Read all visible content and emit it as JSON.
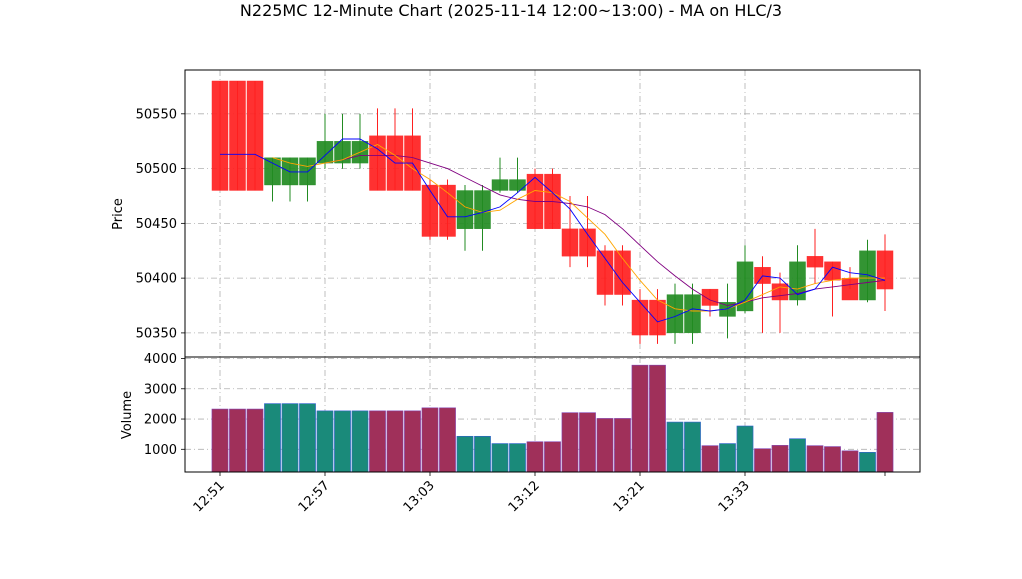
{
  "chart_data": {
    "type": "candlestick-volume",
    "title": "N225MC 12-Minute Chart (2025-11-14 12:00~13:00) - MA on HLC/3",
    "price_panel": {
      "ylabel": "Price",
      "ylim": [
        50328,
        50590
      ],
      "yticks": [
        50350,
        50400,
        50450,
        50500,
        50550
      ],
      "grid": true
    },
    "volume_panel": {
      "ylabel": "Volume",
      "ylim": [
        250,
        4050
      ],
      "yticks": [
        1000,
        2000,
        3000,
        4000
      ],
      "grid": true
    },
    "x_axis": {
      "tick_labels": [
        "12:51",
        "12:57",
        "13:03",
        "13:12",
        "13:21",
        "13:33"
      ],
      "tick_index": [
        0,
        6,
        12,
        18,
        24,
        30
      ]
    },
    "up_color": "#228b22",
    "down_color": "#ff2020",
    "ma_fast_color": "#0000ff",
    "ma_mid_color": "#ffa500",
    "ma_slow_color": "#800080",
    "bars": [
      {
        "o": 50580,
        "h": 50580,
        "l": 50480,
        "c": 50480,
        "v": 2330
      },
      {
        "o": 50580,
        "h": 50580,
        "l": 50480,
        "c": 50480,
        "v": 2330
      },
      {
        "o": 50580,
        "h": 50580,
        "l": 50480,
        "c": 50480,
        "v": 2330
      },
      {
        "o": 50485,
        "h": 50510,
        "l": 50470,
        "c": 50510,
        "v": 2510
      },
      {
        "o": 50485,
        "h": 50510,
        "l": 50470,
        "c": 50510,
        "v": 2510
      },
      {
        "o": 50485,
        "h": 50510,
        "l": 50470,
        "c": 50510,
        "v": 2510
      },
      {
        "o": 50505,
        "h": 50550,
        "l": 50500,
        "c": 50525,
        "v": 2270
      },
      {
        "o": 50505,
        "h": 50550,
        "l": 50500,
        "c": 50525,
        "v": 2270
      },
      {
        "o": 50505,
        "h": 50550,
        "l": 50500,
        "c": 50525,
        "v": 2270
      },
      {
        "o": 50530,
        "h": 50555,
        "l": 50480,
        "c": 50480,
        "v": 2270
      },
      {
        "o": 50530,
        "h": 50555,
        "l": 50480,
        "c": 50480,
        "v": 2270
      },
      {
        "o": 50530,
        "h": 50555,
        "l": 50480,
        "c": 50480,
        "v": 2270
      },
      {
        "o": 50485,
        "h": 50490,
        "l": 50435,
        "c": 50438,
        "v": 2370
      },
      {
        "o": 50485,
        "h": 50490,
        "l": 50435,
        "c": 50438,
        "v": 2370
      },
      {
        "o": 50445,
        "h": 50485,
        "l": 50425,
        "c": 50480,
        "v": 1430
      },
      {
        "o": 50445,
        "h": 50485,
        "l": 50425,
        "c": 50480,
        "v": 1430
      },
      {
        "o": 50480,
        "h": 50510,
        "l": 50478,
        "c": 50490,
        "v": 1190
      },
      {
        "o": 50480,
        "h": 50510,
        "l": 50478,
        "c": 50490,
        "v": 1190
      },
      {
        "o": 50495,
        "h": 50500,
        "l": 50445,
        "c": 50445,
        "v": 1250
      },
      {
        "o": 50495,
        "h": 50500,
        "l": 50445,
        "c": 50445,
        "v": 1250
      },
      {
        "o": 50445,
        "h": 50475,
        "l": 50410,
        "c": 50420,
        "v": 2210
      },
      {
        "o": 50445,
        "h": 50475,
        "l": 50410,
        "c": 50420,
        "v": 2210
      },
      {
        "o": 50425,
        "h": 50430,
        "l": 50375,
        "c": 50385,
        "v": 2020
      },
      {
        "o": 50425,
        "h": 50430,
        "l": 50375,
        "c": 50385,
        "v": 2020
      },
      {
        "o": 50380,
        "h": 50390,
        "l": 50340,
        "c": 50348,
        "v": 3780
      },
      {
        "o": 50380,
        "h": 50390,
        "l": 50340,
        "c": 50348,
        "v": 3780
      },
      {
        "o": 50350,
        "h": 50395,
        "l": 50340,
        "c": 50385,
        "v": 1900
      },
      {
        "o": 50350,
        "h": 50395,
        "l": 50340,
        "c": 50385,
        "v": 1900
      },
      {
        "o": 50390,
        "h": 50390,
        "l": 50365,
        "c": 50375,
        "v": 1120
      },
      {
        "o": 50365,
        "h": 50395,
        "l": 50345,
        "c": 50378,
        "v": 1190
      },
      {
        "o": 50370,
        "h": 50430,
        "l": 50368,
        "c": 50415,
        "v": 1770
      },
      {
        "o": 50410,
        "h": 50420,
        "l": 50350,
        "c": 50395,
        "v": 1020
      },
      {
        "o": 50395,
        "h": 50405,
        "l": 50350,
        "c": 50380,
        "v": 1130
      },
      {
        "o": 50380,
        "h": 50430,
        "l": 50375,
        "c": 50415,
        "v": 1350
      },
      {
        "o": 50420,
        "h": 50445,
        "l": 50395,
        "c": 50410,
        "v": 1120
      },
      {
        "o": 50415,
        "h": 50415,
        "l": 50365,
        "c": 50398,
        "v": 1090
      },
      {
        "o": 50400,
        "h": 50410,
        "l": 50390,
        "c": 50380,
        "v": 950
      },
      {
        "o": 50380,
        "h": 50435,
        "l": 50378,
        "c": 50425,
        "v": 900
      },
      {
        "o": 50425,
        "h": 50440,
        "l": 50370,
        "c": 50390,
        "v": 2220
      }
    ],
    "ma_fast": [
      50513,
      50513,
      50513,
      50505,
      50497,
      50497,
      50512,
      50527,
      50527,
      50518,
      50505,
      50505,
      50480,
      50456,
      50456,
      50460,
      50465,
      50478,
      50492,
      50478,
      50463,
      50440,
      50418,
      50396,
      50378,
      50360,
      50365,
      50372,
      50370,
      50372,
      50380,
      50402,
      50400,
      50385,
      50390,
      50410,
      50405,
      50403,
      50398
    ],
    "ma_mid": [
      null,
      null,
      null,
      50510,
      50505,
      50502,
      50505,
      50508,
      50515,
      50522,
      50512,
      50500,
      50490,
      50478,
      50465,
      50460,
      50462,
      50472,
      50480,
      50478,
      50470,
      50455,
      50440,
      50418,
      50398,
      50380,
      50372,
      50370,
      50370,
      50372,
      50378,
      50385,
      50392,
      50390,
      50395,
      50398,
      50400,
      50400,
      50400
    ],
    "ma_slow": [
      null,
      null,
      null,
      null,
      null,
      null,
      50505,
      50508,
      50512,
      50512,
      50512,
      50510,
      50505,
      50500,
      50492,
      50484,
      50476,
      50472,
      50470,
      50470,
      50468,
      50465,
      50458,
      50445,
      50430,
      50415,
      50402,
      50390,
      50380,
      50375,
      50378,
      50382,
      50384,
      50386,
      50390,
      50392,
      50394,
      50396,
      50398
    ]
  }
}
